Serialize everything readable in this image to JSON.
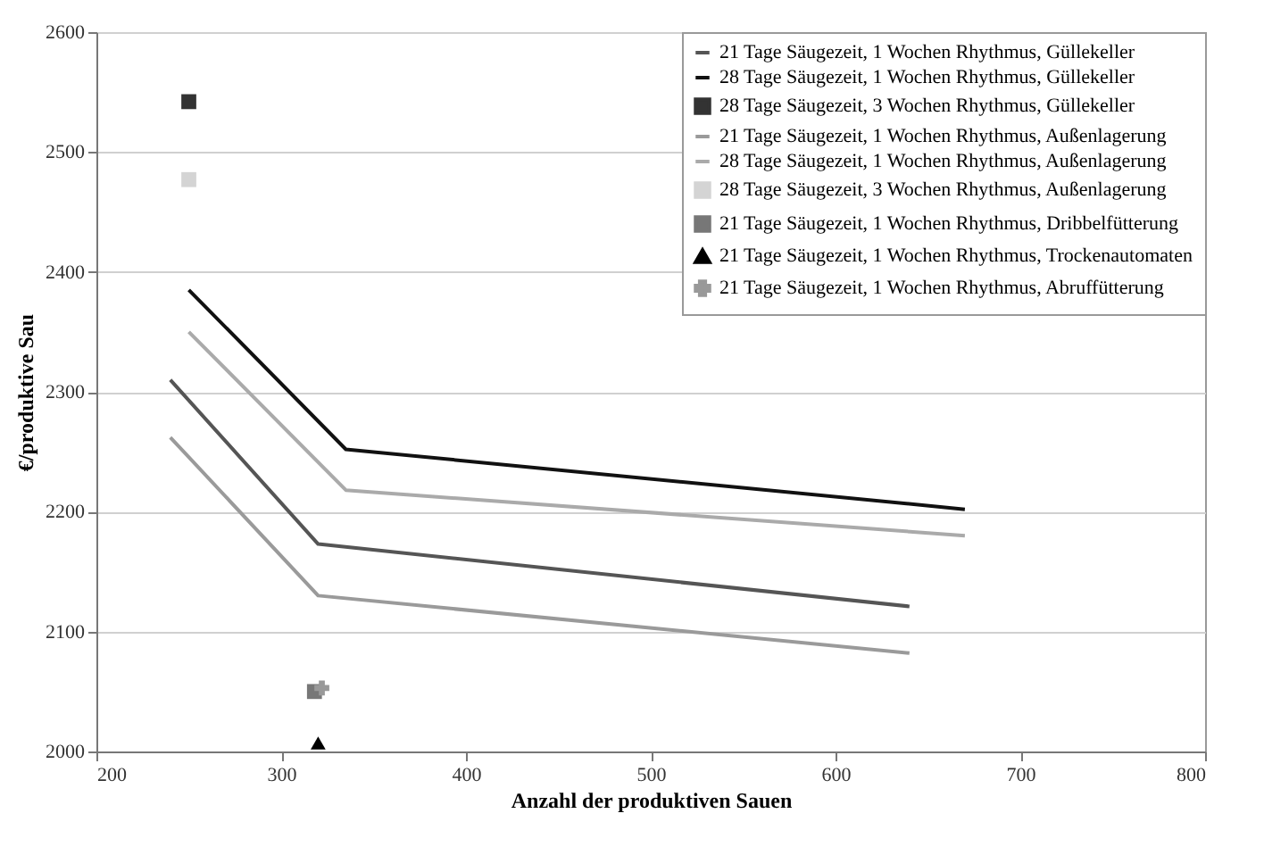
{
  "chart_data": {
    "type": "line",
    "xlabel": "Anzahl der produktiven Sauen",
    "ylabel": "€/produktive Sau",
    "xlim": [
      200,
      800
    ],
    "xticks": [
      200,
      300,
      400,
      500,
      600,
      700,
      800
    ],
    "ylim": [
      2000,
      2600
    ],
    "yticks": [
      2000,
      2100,
      2200,
      2300,
      2400,
      2500,
      2600
    ],
    "grid": "y",
    "legend": "top right",
    "series": [
      {
        "name": "21 Tage Säugezeit, 1 Wochen Rhythmus, Güllekeller",
        "marker": "none",
        "color": "#555555",
        "x": [
          240,
          320,
          640
        ],
        "values": [
          2310,
          2173,
          2121
        ]
      },
      {
        "name": "28 Tage Säugezeit, 1 Wochen Rhythmus, Güllekeller",
        "marker": "none",
        "color": "#111111",
        "x": [
          250,
          335,
          670
        ],
        "values": [
          2385,
          2252,
          2202
        ]
      },
      {
        "name": "28 Tage Säugezeit, 3 Wochen Rhythmus, Güllekeller",
        "type": "scatter",
        "marker": "square",
        "color": "#333333",
        "x": [
          250
        ],
        "values": [
          2542
        ]
      },
      {
        "name": "21 Tage Säugezeit, 1 Wochen Rhythmus, Außenlagerung",
        "marker": "none",
        "color": "#9a9a9a",
        "x": [
          240,
          320,
          640
        ],
        "values": [
          2262,
          2130,
          2082
        ]
      },
      {
        "name": "28 Tage Säugezeit, 1 Wochen Rhythmus, Außenlagerung",
        "marker": "none",
        "color": "#aaaaaa",
        "x": [
          250,
          335,
          670
        ],
        "values": [
          2350,
          2218,
          2180
        ]
      },
      {
        "name": "28 Tage Säugezeit, 3 Wochen Rhythmus, Außenlagerung",
        "type": "scatter",
        "marker": "square",
        "color": "#d4d4d4",
        "x": [
          250
        ],
        "values": [
          2477
        ]
      },
      {
        "name": "21 Tage Säugezeit, 1 Wochen Rhythmus, Dribbelfütterung",
        "type": "scatter",
        "marker": "square",
        "color": "#777777",
        "x": [
          318
        ],
        "values": [
          2050
        ]
      },
      {
        "name": "21 Tage Säugezeit, 1 Wochen Rhythmus, Trockenautomaten",
        "type": "scatter",
        "marker": "triangle",
        "color": "#000000",
        "x": [
          320
        ],
        "values": [
          2007
        ]
      },
      {
        "name": "21 Tage Säugezeit, 1 Wochen Rhythmus, Abruffütterung",
        "type": "scatter",
        "marker": "cross",
        "color": "#999999",
        "x": [
          322
        ],
        "values": [
          2053
        ]
      }
    ]
  }
}
